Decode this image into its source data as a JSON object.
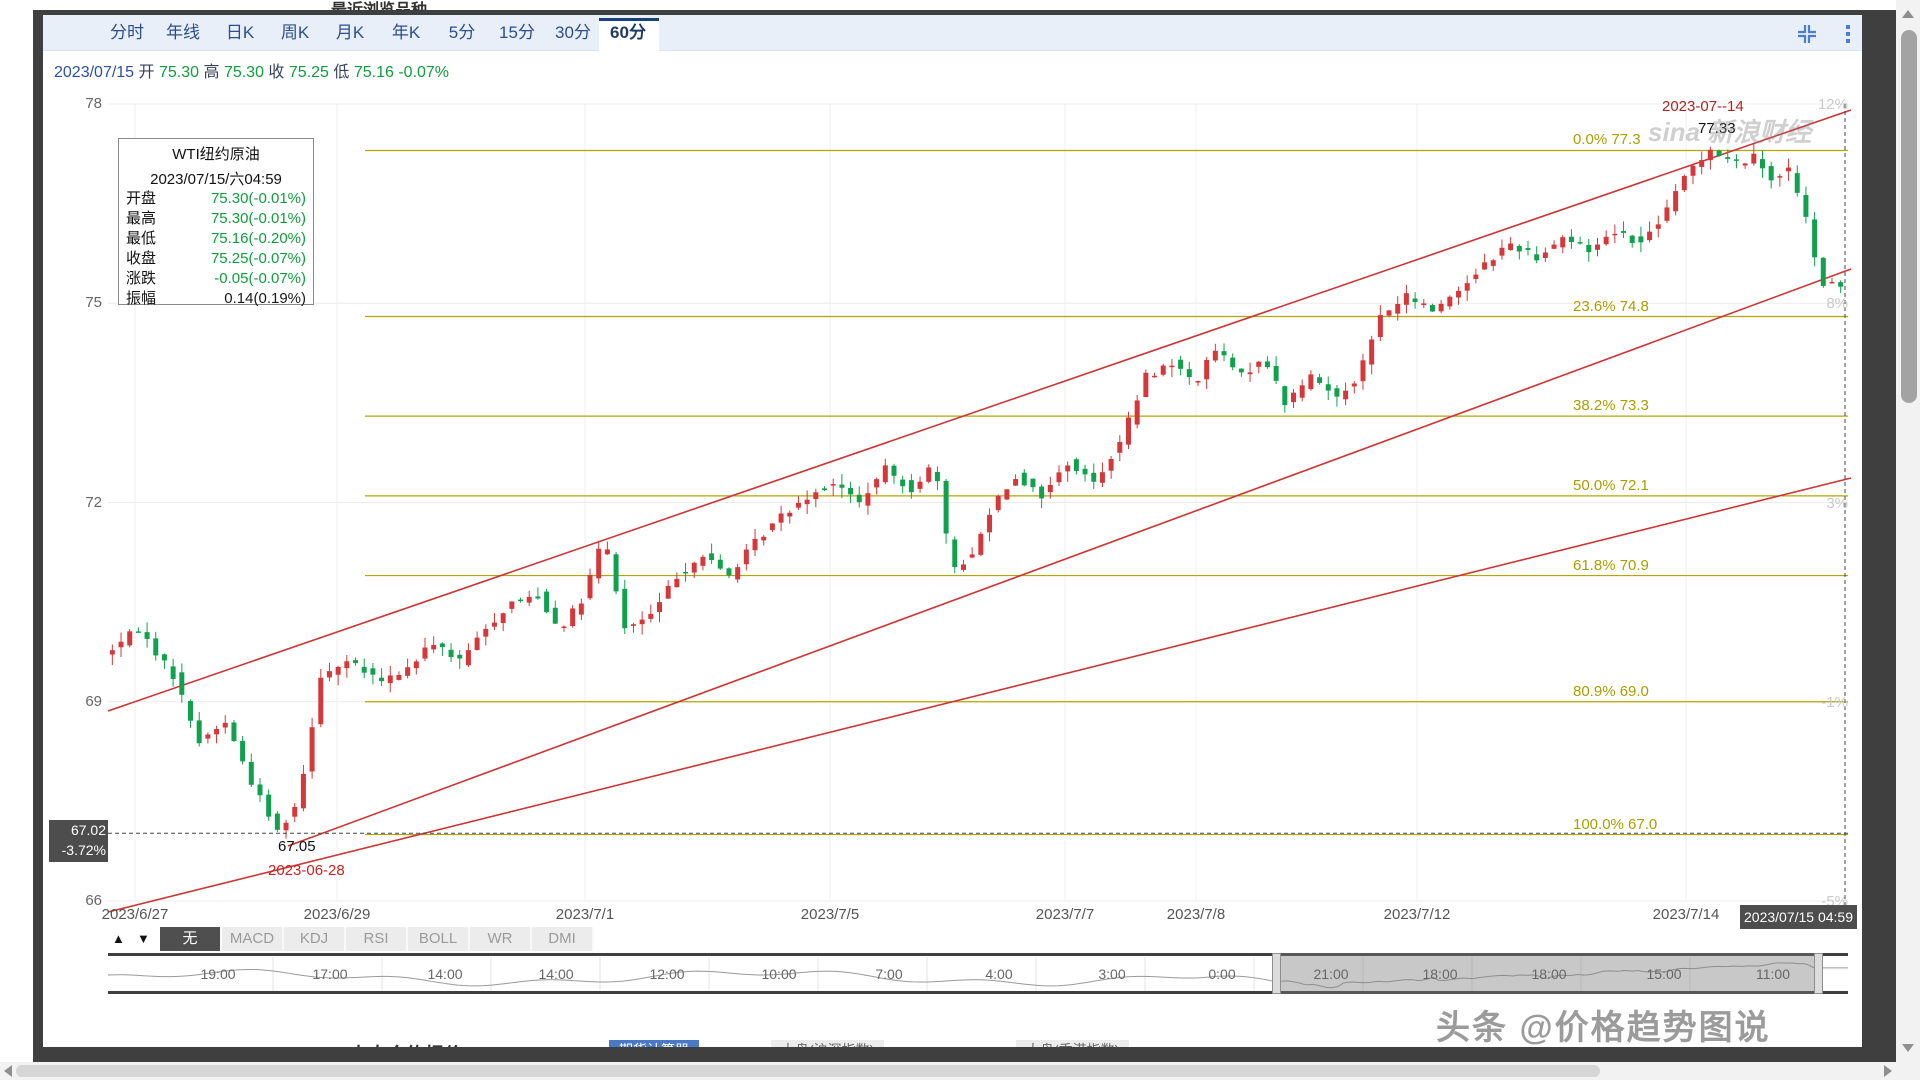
{
  "frame": {
    "top_cut_text": "最近浏览品种",
    "bottom_cut": [
      {
        "text": "十大合约报价",
        "style": "bold-dark",
        "x": 349
      },
      {
        "text": "期货计算器",
        "style": "blue-tab",
        "x": 609
      },
      {
        "text": "大盘(沪深指数)",
        "style": "light-tab",
        "x": 771
      },
      {
        "text": "大盘(香港指数)",
        "style": "light-tab",
        "x": 1016
      }
    ]
  },
  "toolbar": {
    "tabs": [
      "分时",
      "年线",
      "日K",
      "周K",
      "月K",
      "年K",
      "5分",
      "15分",
      "30分",
      "60分"
    ],
    "active": "60分"
  },
  "summary": {
    "segments": [
      {
        "text": "2023/07/15",
        "color": "#2b50a8"
      },
      {
        "text": " 开 ",
        "color": "#39415e"
      },
      {
        "text": "75.30",
        "color": "#0f9d3c"
      },
      {
        "text": " 高 ",
        "color": "#39415e"
      },
      {
        "text": "75.30",
        "color": "#0f9d3c"
      },
      {
        "text": " 收 ",
        "color": "#39415e"
      },
      {
        "text": "75.25",
        "color": "#0f9d3c"
      },
      {
        "text": " 低 ",
        "color": "#39415e"
      },
      {
        "text": "75.16",
        "color": "#0f9d3c"
      },
      {
        "text": " -0.07%",
        "color": "#0f9d3c"
      }
    ]
  },
  "info_box": {
    "title": "WTI纽约原油",
    "datetime": "2023/07/15/六04:59",
    "rows": [
      {
        "label": "开盘",
        "value": "75.30(-0.01%)",
        "color": "#0f9d3c"
      },
      {
        "label": "最高",
        "value": "75.30(-0.01%)",
        "color": "#0f9d3c"
      },
      {
        "label": "最低",
        "value": "75.16(-0.20%)",
        "color": "#0f9d3c"
      },
      {
        "label": "收盘",
        "value": "75.25(-0.07%)",
        "color": "#0f9d3c"
      },
      {
        "label": "涨跌",
        "value": "-0.05(-0.07%)",
        "color": "#0f9d3c"
      },
      {
        "label": "振幅",
        "value": "0.14(0.19%)",
        "color": "#1a1a1a"
      }
    ]
  },
  "chart_data": {
    "type": "candlestick",
    "symbol": "WTI纽约原油",
    "interval": "60分",
    "ylim": [
      66,
      78
    ],
    "y_ticks": [
      78,
      75,
      72,
      69,
      66
    ],
    "pct_ticks": [
      "12%",
      "8%",
      "3%",
      "-1%",
      "-5%"
    ],
    "x_ticks": [
      "2023/6/27",
      "2023/6/29",
      "2023/7/1",
      "2023/7/5",
      "2023/7/7",
      "2023/7/8",
      "2023/7/12",
      "2023/7/14"
    ],
    "current_time": "2023/07/15 04:59",
    "fib_levels": [
      {
        "label": "0.0% 77.3",
        "price": 77.3
      },
      {
        "label": "23.6% 74.8",
        "price": 74.8
      },
      {
        "label": "38.2% 73.3",
        "price": 73.3
      },
      {
        "label": "50.0% 72.1",
        "price": 72.1
      },
      {
        "label": "61.8% 70.9",
        "price": 70.9
      },
      {
        "label": "80.9% 69.0",
        "price": 69.0
      },
      {
        "label": "100.0% 67.0",
        "price": 67.0
      }
    ],
    "annotations": {
      "peak_date": "2023-07--14",
      "peak_price": "77.33",
      "trough_price": "67.05",
      "trough_date": "2023-06-28"
    },
    "crosshair": {
      "price": "67.02",
      "pct": "-3.72%"
    },
    "last_bar": {
      "open": 75.3,
      "high": 75.3,
      "low": 75.16,
      "close": 75.25,
      "change": -0.05,
      "change_pct": -0.07,
      "amplitude": 0.14
    },
    "num_candles": 200,
    "up_color": "#d5383a",
    "down_color": "#11a14e",
    "fib_color": "#b5a500",
    "channel_color": "#cf3333",
    "channel_lines": [
      [
        108,
        711,
        1851,
        110
      ],
      [
        288,
        846,
        1851,
        269
      ],
      [
        108,
        912,
        1851,
        478
      ]
    ],
    "price_path_anchors": [
      [
        0.0,
        69.7
      ],
      [
        0.02,
        70.1
      ],
      [
        0.04,
        69.4
      ],
      [
        0.055,
        68.4
      ],
      [
        0.07,
        68.7
      ],
      [
        0.085,
        67.8
      ],
      [
        0.1,
        67.05
      ],
      [
        0.112,
        67.5
      ],
      [
        0.125,
        69.4
      ],
      [
        0.14,
        69.6
      ],
      [
        0.16,
        69.3
      ],
      [
        0.175,
        69.5
      ],
      [
        0.19,
        69.9
      ],
      [
        0.205,
        69.6
      ],
      [
        0.22,
        70.1
      ],
      [
        0.235,
        70.5
      ],
      [
        0.25,
        70.6
      ],
      [
        0.262,
        70.1
      ],
      [
        0.275,
        70.5
      ],
      [
        0.288,
        71.5
      ],
      [
        0.3,
        70.1
      ],
      [
        0.315,
        70.3
      ],
      [
        0.33,
        70.9
      ],
      [
        0.345,
        71.2
      ],
      [
        0.36,
        70.9
      ],
      [
        0.375,
        71.4
      ],
      [
        0.39,
        71.8
      ],
      [
        0.405,
        72.1
      ],
      [
        0.42,
        72.3
      ],
      [
        0.435,
        72.0
      ],
      [
        0.45,
        72.5
      ],
      [
        0.465,
        72.2
      ],
      [
        0.478,
        72.6
      ],
      [
        0.488,
        71.0
      ],
      [
        0.5,
        71.2
      ],
      [
        0.512,
        72.0
      ],
      [
        0.525,
        72.4
      ],
      [
        0.54,
        72.1
      ],
      [
        0.555,
        72.6
      ],
      [
        0.57,
        72.3
      ],
      [
        0.585,
        72.9
      ],
      [
        0.6,
        73.9
      ],
      [
        0.615,
        74.1
      ],
      [
        0.628,
        73.8
      ],
      [
        0.64,
        74.3
      ],
      [
        0.655,
        73.9
      ],
      [
        0.668,
        74.2
      ],
      [
        0.68,
        73.5
      ],
      [
        0.695,
        73.9
      ],
      [
        0.71,
        73.6
      ],
      [
        0.722,
        73.9
      ],
      [
        0.735,
        74.8
      ],
      [
        0.75,
        75.1
      ],
      [
        0.765,
        74.9
      ],
      [
        0.78,
        75.2
      ],
      [
        0.795,
        75.6
      ],
      [
        0.81,
        75.9
      ],
      [
        0.825,
        75.7
      ],
      [
        0.84,
        76.0
      ],
      [
        0.855,
        75.8
      ],
      [
        0.87,
        76.1
      ],
      [
        0.885,
        75.9
      ],
      [
        0.9,
        76.4
      ],
      [
        0.912,
        77.0
      ],
      [
        0.925,
        77.33
      ],
      [
        0.938,
        77.1
      ],
      [
        0.95,
        77.2
      ],
      [
        0.96,
        76.9
      ],
      [
        0.97,
        77.0
      ],
      [
        0.978,
        76.5
      ],
      [
        0.988,
        75.3
      ],
      [
        1.0,
        75.25
      ]
    ]
  },
  "indicators": {
    "up_arrow": "▲",
    "down_arrow": "▼",
    "tabs": [
      "无",
      "MACD",
      "KDJ",
      "RSI",
      "BOLL",
      "WR",
      "DMI"
    ],
    "active": "无"
  },
  "minimap": {
    "times_before": [
      "19:00",
      "17:00",
      "14:00",
      "14:00",
      "12:00",
      "10:00",
      "7:00",
      "4:00",
      "3:00",
      "0:00"
    ],
    "times_selected": [
      "21:00",
      "18:00",
      "18:00",
      "15:00",
      "11:00"
    ]
  },
  "watermarks": {
    "sina": "sina 新浪财经",
    "byline": "头条 @价格趋势图说"
  },
  "scrollbars": {
    "up": "▲",
    "down": "▼",
    "left": "◀",
    "right": "▶"
  },
  "colors": {
    "accent_blue": "#2c4d8e",
    "toolbar_bg": "#e9eff8",
    "green": "#0f9d3c",
    "red": "#d5383a",
    "fib": "#b5a500",
    "channel": "#cf3333",
    "dark_frame": "#3f3f3f"
  }
}
